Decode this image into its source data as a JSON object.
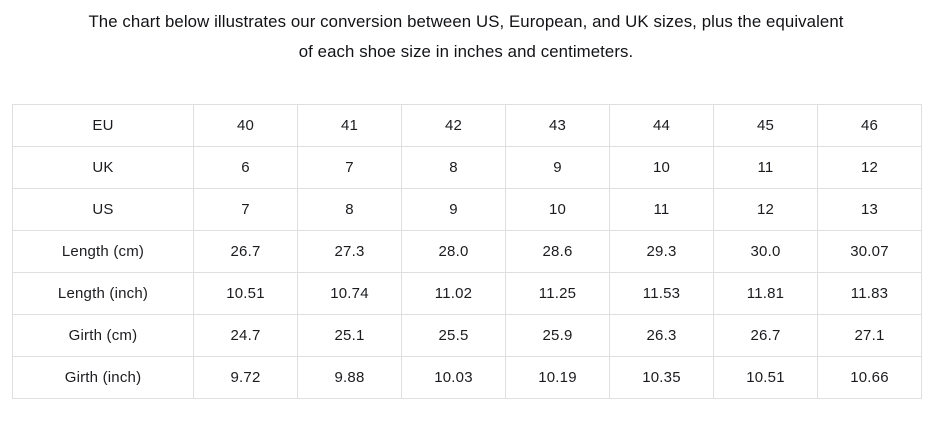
{
  "page": {
    "title_line1": "The chart below illustrates our conversion between US, European, and UK sizes, plus the equivalent",
    "title_line2": "of each shoe size in inches and centimeters."
  },
  "colors": {
    "background": "#ffffff",
    "text": "#1b1c1f",
    "table_border": "#dedfe0"
  },
  "table": {
    "rows": [
      {
        "label": "EU",
        "values": [
          "40",
          "41",
          "42",
          "43",
          "44",
          "45",
          "46"
        ]
      },
      {
        "label": "UK",
        "values": [
          "6",
          "7",
          "8",
          "9",
          "10",
          "11",
          "12"
        ]
      },
      {
        "label": "US",
        "values": [
          "7",
          "8",
          "9",
          "10",
          "11",
          "12",
          "13"
        ]
      },
      {
        "label": "Length (cm)",
        "values": [
          "26.7",
          "27.3",
          "28.0",
          "28.6",
          "29.3",
          "30.0",
          "30.07"
        ]
      },
      {
        "label": "Length (inch)",
        "values": [
          "10.51",
          "10.74",
          "11.02",
          "11.25",
          "11.53",
          "11.81",
          "11.83"
        ]
      },
      {
        "label": "Girth (cm)",
        "values": [
          "24.7",
          "25.1",
          "25.5",
          "25.9",
          "26.3",
          "26.7",
          "27.1"
        ]
      },
      {
        "label": "Girth (inch)",
        "values": [
          "9.72",
          "9.88",
          "10.03",
          "10.19",
          "10.35",
          "10.51",
          "10.66"
        ]
      }
    ]
  },
  "chart_data": {
    "type": "table",
    "title": "The chart below illustrates our conversion between US, European, and UK sizes, plus the equivalent of each shoe size in inches and centimeters.",
    "row_headers": [
      "EU",
      "UK",
      "US",
      "Length (cm)",
      "Length (inch)",
      "Girth (cm)",
      "Girth (inch)"
    ],
    "rows": [
      [
        40,
        41,
        42,
        43,
        44,
        45,
        46
      ],
      [
        6,
        7,
        8,
        9,
        10,
        11,
        12
      ],
      [
        7,
        8,
        9,
        10,
        11,
        12,
        13
      ],
      [
        26.7,
        27.3,
        28.0,
        28.6,
        29.3,
        30.0,
        30.07
      ],
      [
        10.51,
        10.74,
        11.02,
        11.25,
        11.53,
        11.81,
        11.83
      ],
      [
        24.7,
        25.1,
        25.5,
        25.9,
        26.3,
        26.7,
        27.1
      ],
      [
        9.72,
        9.88,
        10.03,
        10.19,
        10.35,
        10.51,
        10.66
      ]
    ],
    "layout": {
      "grid": true,
      "first_column_is_header": true,
      "alignment": "center"
    }
  }
}
